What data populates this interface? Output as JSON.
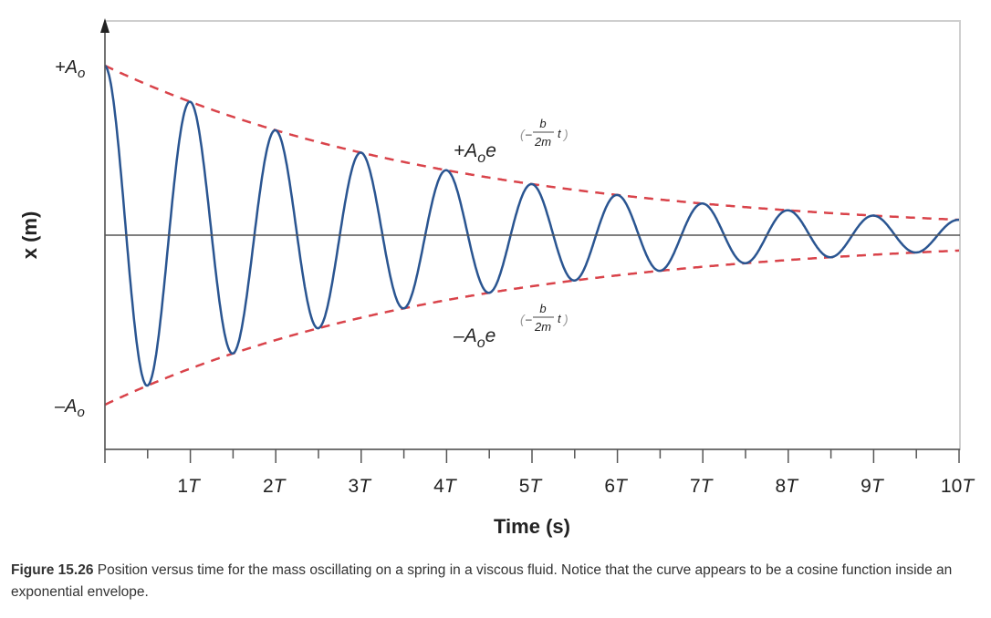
{
  "chart_data": {
    "type": "line",
    "xlabel": "Time (s)",
    "ylabel": "x (m)",
    "x_tick_labels": [
      "1T",
      "2T",
      "3T",
      "4T",
      "5T",
      "6T",
      "7T",
      "8T",
      "9T",
      "10T"
    ],
    "xlim": [
      0,
      10
    ],
    "x_unit": "T",
    "y_tick_labels": {
      "top": "+A",
      "bottom": "–A",
      "subscript": "o"
    },
    "ylim": [
      -1,
      1
    ],
    "grid": false,
    "series": [
      {
        "kind": "oscillation",
        "function": "A0 e^(-b t / 2m) cos(2π t / T)",
        "decay_per_period": 0.24,
        "color": "#2a5591",
        "style": "solid"
      },
      {
        "kind": "upper-envelope",
        "function": "+A0 e^(-b t / 2m)",
        "color": "#d9434a",
        "style": "dashed"
      },
      {
        "kind": "lower-envelope",
        "function": "-A0 e^(-b t / 2m)",
        "color": "#d9434a",
        "style": "dashed"
      }
    ],
    "annotations": {
      "upper": {
        "sign": "+",
        "base": "A",
        "sub": "o",
        "e": "e",
        "num": "b",
        "den": "2m",
        "minus": "–",
        "t": "t"
      },
      "lower": {
        "sign": "–",
        "base": "A",
        "sub": "o",
        "e": "e",
        "num": "b",
        "den": "2m",
        "minus": "–",
        "t": "t"
      }
    }
  },
  "caption": {
    "label": "Figure 15.26",
    "text": " Position versus time for the mass oscillating on a spring in a viscous fluid. Notice that the curve appears to be a cosine function inside an exponential envelope."
  }
}
